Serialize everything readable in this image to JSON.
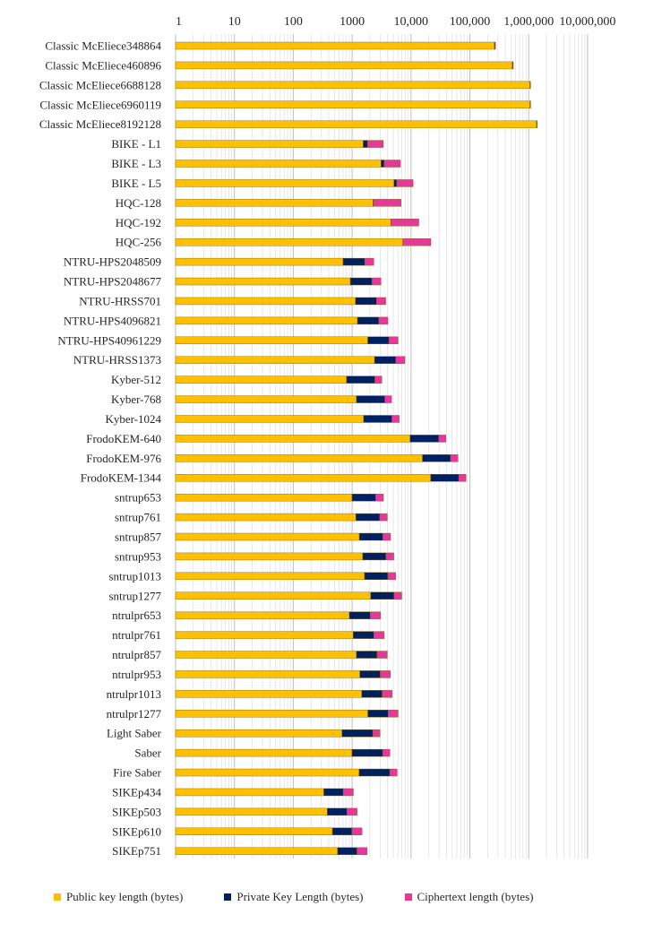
{
  "chart_data": {
    "type": "bar",
    "orientation": "horizontal",
    "stacked": true,
    "scale": "log",
    "xlim": [
      1,
      10000000
    ],
    "grid": true,
    "legend_position": "bottom",
    "ticks": [
      "1",
      "10",
      "100",
      "1000",
      "10,000",
      "100,000",
      "1,000,000",
      "10,000,000"
    ],
    "categories": [
      "Classic McEliece348864",
      "Classic McEliece460896",
      "Classic McEliece6688128",
      "Classic McEliece6960119",
      "Classic McEliece8192128",
      "BIKE - L1",
      "BIKE - L3",
      "BIKE - L5",
      "HQC-128",
      "HQC-192",
      "HQC-256",
      "NTRU-HPS2048509",
      "NTRU-HPS2048677",
      "NTRU-HRSS701",
      "NTRU-HPS4096821",
      "NTRU-HPS40961229",
      "NTRU-HRSS1373",
      "Kyber-512",
      "Kyber-768",
      "Kyber-1024",
      "FrodoKEM-640",
      "FrodoKEM-976",
      "FrodoKEM-1344",
      "sntrup653",
      "sntrup761",
      "sntrup857",
      "sntrup953",
      "sntrup1013",
      "sntrup1277",
      "ntrulpr653",
      "ntrulpr761",
      "ntrulpr857",
      "ntrulpr953",
      "ntrulpr1013",
      "ntrulpr1277",
      "Light Saber",
      "Saber",
      "Fire Saber",
      "SIKEp434",
      "SIKEp503",
      "SIKEp610",
      "SIKEp751"
    ],
    "series": [
      {
        "name": "Public key length (bytes)",
        "color": "#FFC000",
        "values": [
          261120,
          524160,
          1044992,
          1047319,
          1357824,
          1541,
          3083,
          5122,
          2249,
          4522,
          7245,
          699,
          930,
          1138,
          1230,
          1842,
          2401,
          800,
          1184,
          1568,
          9616,
          15632,
          21520,
          994,
          1158,
          1322,
          1505,
          1623,
          2067,
          897,
          1039,
          1184,
          1349,
          1455,
          1847,
          672,
          992,
          1312,
          330,
          378,
          462,
          564
        ]
      },
      {
        "name": "Private Key Length (bytes)",
        "color": "#002060",
        "values": [
          6492,
          13608,
          13932,
          13948,
          14120,
          281,
          419,
          580,
          40,
          40,
          40,
          935,
          1234,
          1450,
          1590,
          2366,
          3082,
          1632,
          2400,
          3168,
          19888,
          31296,
          43088,
          1518,
          1763,
          1999,
          2254,
          2417,
          3059,
          1125,
          1294,
          1463,
          1652,
          1773,
          2231,
          1568,
          2304,
          3040,
          374,
          434,
          524,
          644
        ]
      },
      {
        "name": "Ciphertext length (bytes)",
        "color": "#E8379A",
        "values": [
          128,
          188,
          240,
          226,
          240,
          1573,
          3115,
          5154,
          4481,
          9026,
          14469,
          699,
          930,
          1138,
          1230,
          1842,
          2401,
          768,
          1088,
          1568,
          9720,
          15744,
          21632,
          897,
          1039,
          1184,
          1349,
          1455,
          1847,
          1025,
          1167,
          1312,
          1477,
          1583,
          1975,
          736,
          1088,
          1472,
          346,
          402,
          486,
          596
        ]
      }
    ]
  }
}
